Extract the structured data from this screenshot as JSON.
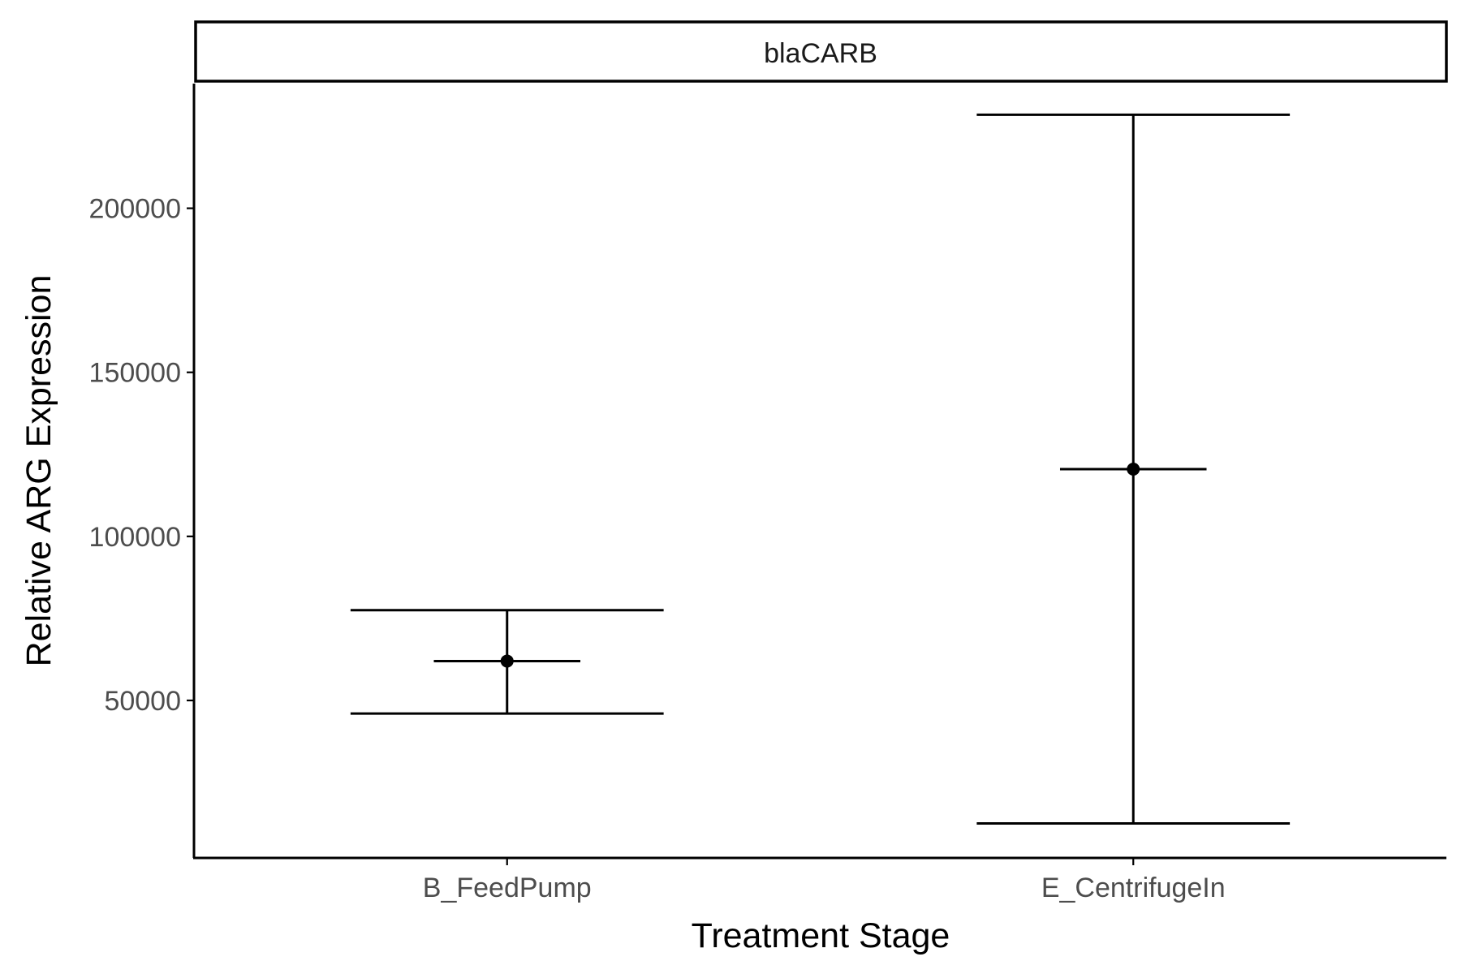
{
  "chart_data": {
    "type": "scatter",
    "facet_label": "blaCARB",
    "xlabel": "Treatment Stage",
    "ylabel": "Relative ARG Expression",
    "categories": [
      "B_FeedPump",
      "E_CentrifugeIn"
    ],
    "points": [
      {
        "category": "B_FeedPump",
        "mean": 62000,
        "se_lower": 46000,
        "se_upper": 77500,
        "sd_lower": 62000,
        "sd_upper": 62000
      },
      {
        "category": "E_CentrifugeIn",
        "mean": 120500,
        "se_lower": 12500,
        "se_upper": 228500,
        "sd_lower": 120500,
        "sd_upper": 120500
      }
    ],
    "yticks": [
      50000,
      100000,
      150000,
      200000
    ],
    "ytick_labels": [
      "50000",
      "100000",
      "150000",
      "200000"
    ],
    "ylim": [
      2000,
      238000
    ],
    "grid": false,
    "legend": "none"
  }
}
